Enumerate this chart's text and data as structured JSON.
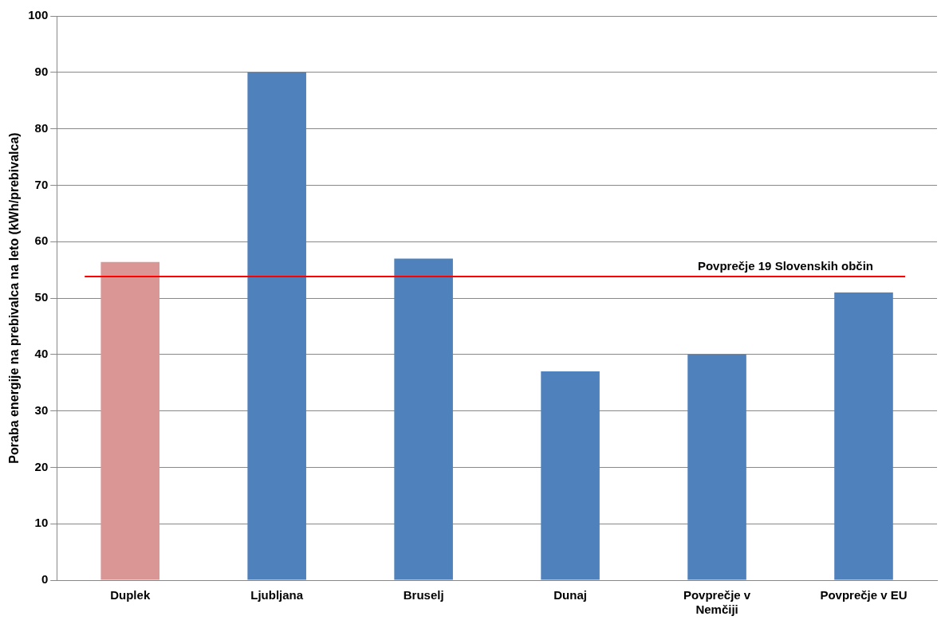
{
  "chart_data": {
    "type": "bar",
    "ylabel": "Poraba energije na prebivalca na leto (kWh/prebivalca)",
    "categories": [
      "Duplek",
      "Ljubljana",
      "Bruselj",
      "Dunaj",
      "Povprečje v Nemčiji",
      "Povprečje v EU"
    ],
    "values": [
      56.4,
      90,
      57,
      37,
      40,
      51
    ],
    "colors": [
      "#d99694",
      "#4f81bd",
      "#4f81bd",
      "#4f81bd",
      "#4f81bd",
      "#4f81bd"
    ],
    "ylim": [
      0,
      100
    ],
    "yticks": [
      0,
      10,
      20,
      30,
      40,
      50,
      60,
      70,
      80,
      90,
      100
    ],
    "grid": "y",
    "legend": false,
    "ref_lines": [
      {
        "axis": "y",
        "value": 53.8,
        "label": "Povprečje 19 Slovenskih občin",
        "color": "#ff0000"
      }
    ]
  }
}
